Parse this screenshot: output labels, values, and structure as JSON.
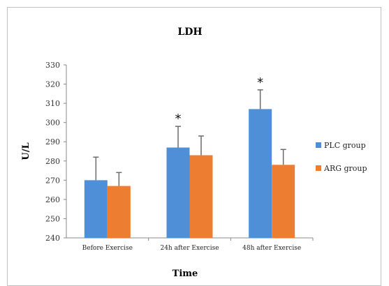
{
  "chart_data": {
    "type": "bar",
    "title": "LDH",
    "xlabel": "Time",
    "ylabel": "U/L",
    "ylim": [
      240,
      330
    ],
    "yticks": [
      240,
      250,
      260,
      270,
      280,
      290,
      300,
      310,
      320,
      330
    ],
    "categories": [
      "Before Exercise",
      "24h after Exercise",
      "48h after Exercise"
    ],
    "series": [
      {
        "name": "PLC group",
        "color": "#4f8fd7",
        "values": [
          270,
          287,
          307
        ],
        "errors": [
          12,
          11,
          10
        ]
      },
      {
        "name": "ARG group",
        "color": "#ec7d31",
        "values": [
          267,
          283,
          278
        ],
        "errors": [
          7,
          10,
          8
        ]
      }
    ],
    "annotations": [
      {
        "category": "24h after Exercise",
        "series": "PLC group",
        "text": "*"
      },
      {
        "category": "48h after Exercise",
        "series": "PLC group",
        "text": "*"
      }
    ],
    "grid": false,
    "legend_position": "right"
  }
}
